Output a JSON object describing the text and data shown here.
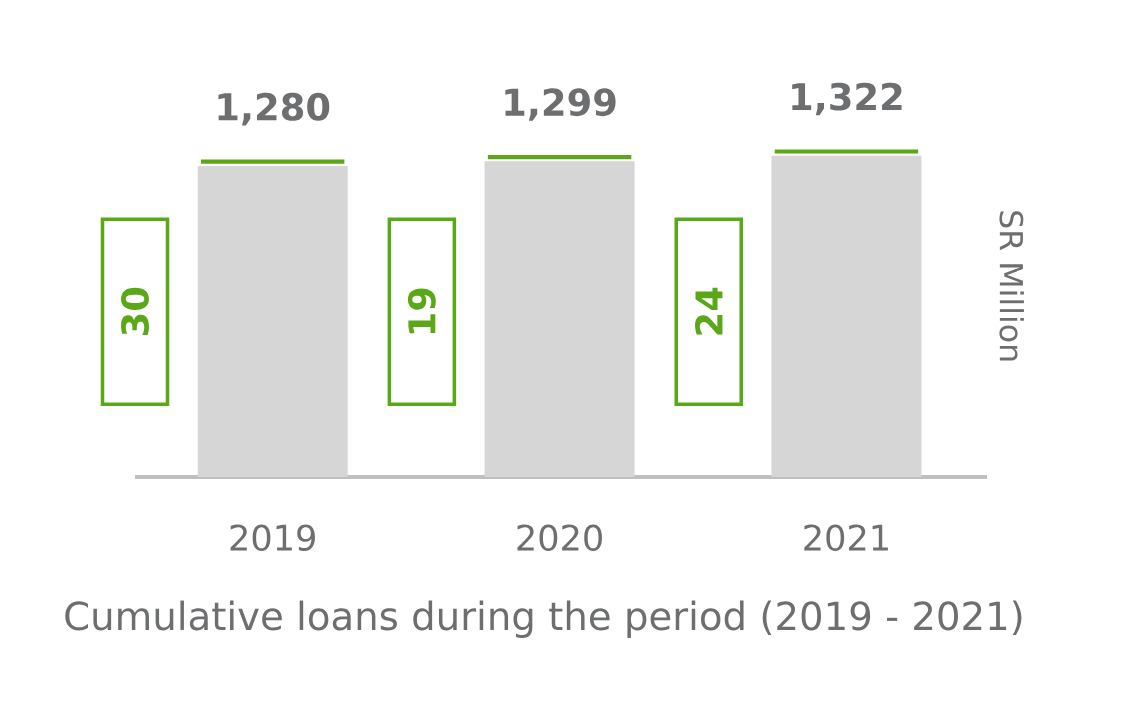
{
  "chart_data": {
    "type": "bar",
    "title": "Cumulative loans during the period (2019 - 2021)",
    "ylabel": "SR Million",
    "categories": [
      "2019",
      "2020",
      "2021"
    ],
    "values": [
      1280,
      1299,
      1322
    ],
    "value_labels": [
      "1,280",
      "1,299",
      "1,322"
    ],
    "color": "#d6d6d6",
    "tick_labels": "x",
    "annotations": [
      "30",
      "19",
      "24"
    ]
  }
}
